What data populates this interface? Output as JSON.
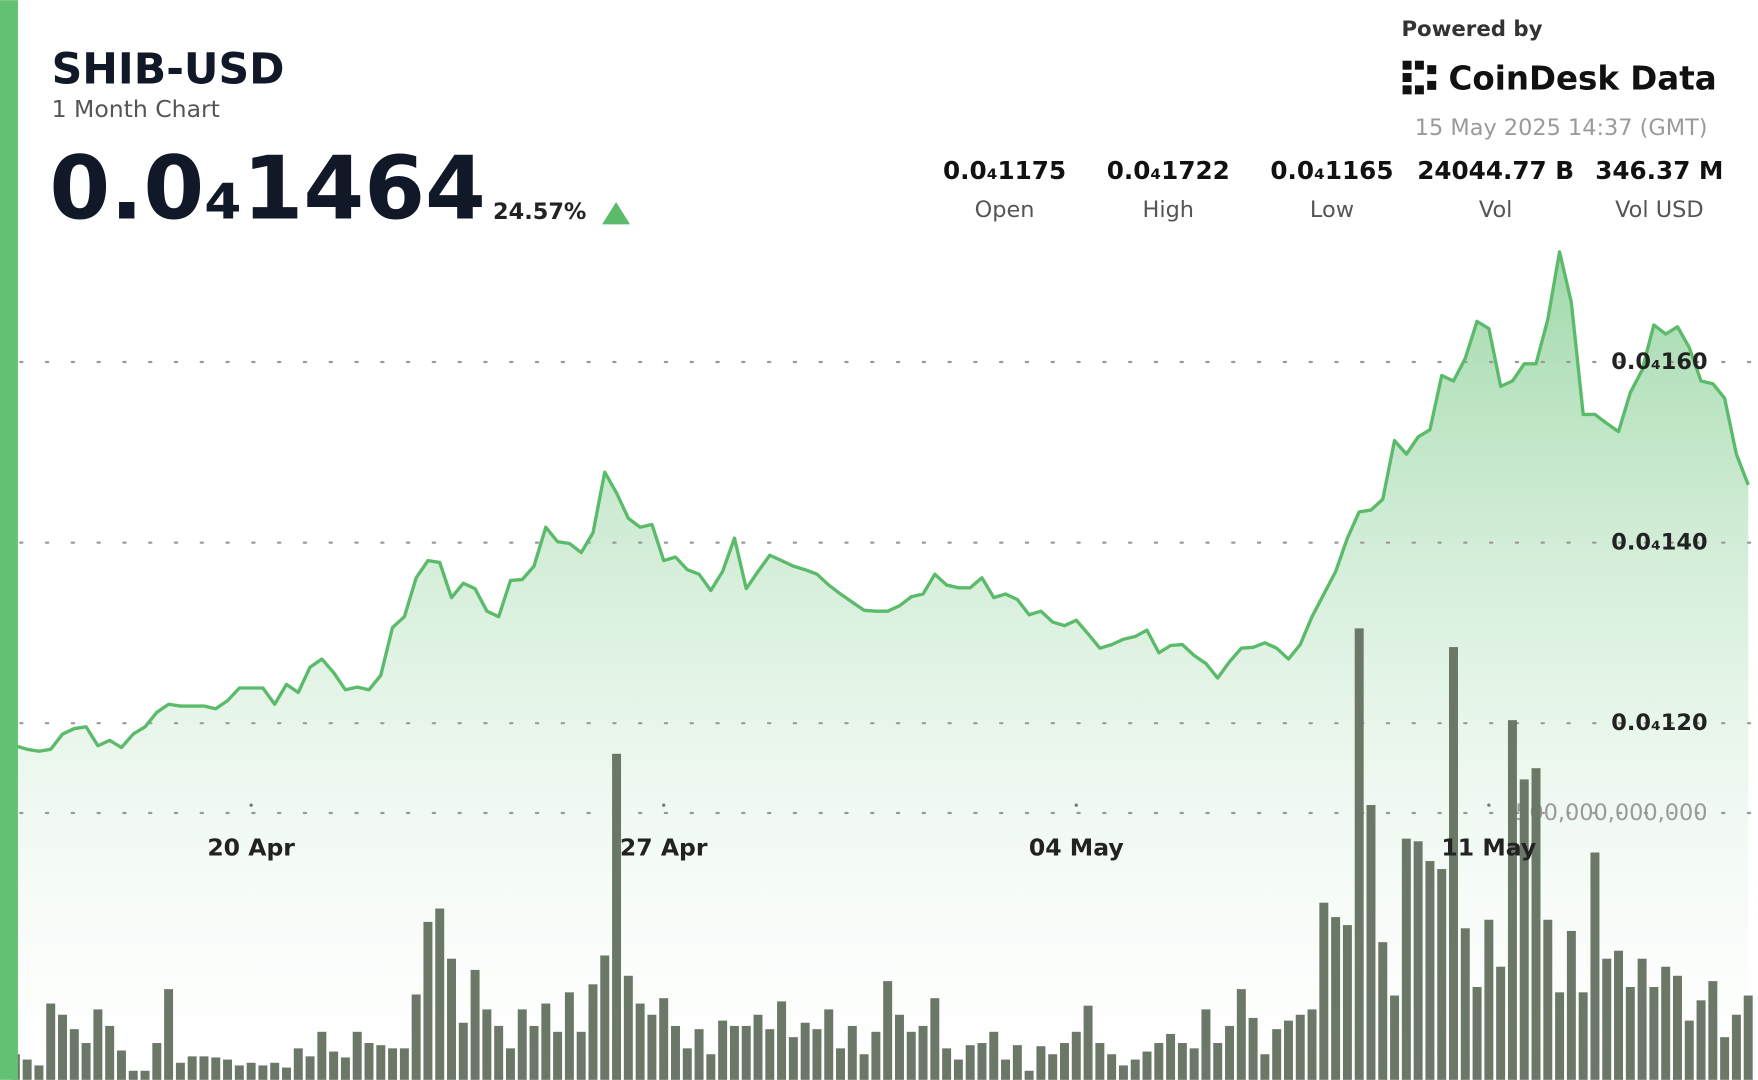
{
  "header": {
    "title": "SHIB-USD",
    "subtitle": "1 Month Chart",
    "price": "0.0₄1464",
    "change": "24.57%",
    "powered_by": "Powered by",
    "brand": "CoinDesk Data",
    "timestamp": "15 May 2025 14:37 (GMT)"
  },
  "stats": [
    {
      "value": "0.0₄1175",
      "label": "Open"
    },
    {
      "value": "0.0₄1722",
      "label": "High"
    },
    {
      "value": "0.0₄1165",
      "label": "Low"
    },
    {
      "value": "24044.77 B",
      "label": "Vol"
    },
    {
      "value": "346.37 M",
      "label": "Vol USD"
    }
  ],
  "chart_data": {
    "type": "line",
    "categories": [
      null,
      null,
      null,
      null,
      null,
      null,
      null,
      null,
      null,
      null,
      null,
      null,
      null,
      null,
      null,
      null,
      null,
      null,
      null,
      null,
      "20 Apr",
      null,
      null,
      null,
      null,
      null,
      null,
      null,
      null,
      null,
      null,
      null,
      null,
      null,
      null,
      null,
      null,
      null,
      null,
      null,
      null,
      null,
      null,
      null,
      null,
      null,
      null,
      null,
      null,
      null,
      null,
      null,
      null,
      null,
      null,
      "27 Apr",
      null,
      null,
      null,
      null,
      null,
      null,
      null,
      null,
      null,
      null,
      null,
      null,
      null,
      null,
      null,
      null,
      null,
      null,
      null,
      null,
      null,
      null,
      null,
      null,
      null,
      null,
      null,
      null,
      null,
      null,
      null,
      null,
      null,
      null,
      "04 May",
      null,
      null,
      null,
      null,
      null,
      null,
      null,
      null,
      null,
      null,
      null,
      null,
      null,
      null,
      null,
      null,
      null,
      null,
      null,
      null,
      null,
      null,
      null,
      null,
      null,
      null,
      null,
      null,
      null,
      null,
      null,
      null,
      null,
      null,
      "11 May",
      null,
      null,
      null,
      null,
      null,
      null,
      null,
      null,
      null,
      null,
      null,
      null,
      null,
      null,
      null,
      null,
      null,
      null,
      null,
      null,
      null,
      null
    ],
    "series": [
      {
        "color": "#5cbb6b",
        "values": [
          1.175e-05,
          1.171e-05,
          1.169e-05,
          1.171e-05,
          1.188e-05,
          1.194e-05,
          1.196e-05,
          1.175e-05,
          1.181e-05,
          1.173e-05,
          1.188e-05,
          1.196e-05,
          1.212e-05,
          1.221e-05,
          1.219e-05,
          1.219e-05,
          1.219e-05,
          1.216e-05,
          1.225e-05,
          1.239e-05,
          1.239e-05,
          1.239e-05,
          1.221e-05,
          1.243e-05,
          1.234e-05,
          1.262e-05,
          1.271e-05,
          1.256e-05,
          1.237e-05,
          1.24e-05,
          1.237e-05,
          1.253e-05,
          1.306e-05,
          1.318e-05,
          1.361e-05,
          1.38e-05,
          1.378e-05,
          1.339e-05,
          1.355e-05,
          1.349e-05,
          1.324e-05,
          1.318e-05,
          1.358e-05,
          1.359e-05,
          1.374e-05,
          1.417e-05,
          1.401e-05,
          1.399e-05,
          1.389e-05,
          1.411e-05,
          1.478e-05,
          1.455e-05,
          1.427e-05,
          1.417e-05,
          1.42e-05,
          1.38e-05,
          1.384e-05,
          1.37e-05,
          1.365e-05,
          1.347e-05,
          1.368e-05,
          1.405e-05,
          1.349e-05,
          1.368e-05,
          1.386e-05,
          1.38e-05,
          1.374e-05,
          1.37e-05,
          1.365e-05,
          1.353e-05,
          1.343e-05,
          1.334e-05,
          1.325e-05,
          1.324e-05,
          1.324e-05,
          1.33e-05,
          1.34e-05,
          1.343e-05,
          1.365e-05,
          1.353e-05,
          1.35e-05,
          1.35e-05,
          1.361e-05,
          1.339e-05,
          1.343e-05,
          1.337e-05,
          1.32e-05,
          1.324e-05,
          1.312e-05,
          1.308e-05,
          1.314e-05,
          1.299e-05,
          1.283e-05,
          1.287e-05,
          1.293e-05,
          1.296e-05,
          1.303e-05,
          1.278e-05,
          1.286e-05,
          1.287e-05,
          1.275e-05,
          1.266e-05,
          1.25e-05,
          1.268e-05,
          1.283e-05,
          1.284e-05,
          1.289e-05,
          1.283e-05,
          1.271e-05,
          1.287e-05,
          1.318e-05,
          1.343e-05,
          1.368e-05,
          1.405e-05,
          1.434e-05,
          1.436e-05,
          1.448e-05,
          1.513e-05,
          1.498e-05,
          1.517e-05,
          1.525e-05,
          1.585e-05,
          1.579e-05,
          1.604e-05,
          1.645e-05,
          1.637e-05,
          1.573e-05,
          1.579e-05,
          1.598e-05,
          1.598e-05,
          1.647e-05,
          1.722e-05,
          1.666e-05,
          1.542e-05,
          1.542e-05,
          1.532e-05,
          1.523e-05,
          1.566e-05,
          1.591e-05,
          1.641e-05,
          1.631e-05,
          1.639e-05,
          1.616e-05,
          1.579e-05,
          1.576e-05,
          1.56e-05,
          1.498e-05,
          1.464e-05
        ]
      },
      {
        "type": "bar",
        "axis": "y2",
        "color": "#6b7868",
        "values": [
          48000000000.0,
          38000000000.0,
          27000000000.0,
          143000000000.0,
          122000000000.0,
          95000000000.0,
          69000000000.0,
          132000000000.0,
          101000000000.0,
          55000000000.0,
          17000000000.0,
          17000000000.0,
          69000000000.0,
          170000000000.0,
          32000000000.0,
          44000000000.0,
          44000000000.0,
          42000000000.0,
          38000000000.0,
          27000000000.0,
          32000000000.0,
          27000000000.0,
          32000000000.0,
          23000000000.0,
          59000000000.0,
          44000000000.0,
          90000000000.0,
          53000000000.0,
          42000000000.0,
          90000000000.0,
          69000000000.0,
          65000000000.0,
          59000000000.0,
          59000000000.0,
          160000000000.0,
          296000000000.0,
          321000000000.0,
          227000000000.0,
          107000000000.0,
          206000000000.0,
          132000000000.0,
          101000000000.0,
          59000000000.0,
          132000000000.0,
          101000000000.0,
          143000000000.0,
          90000000000.0,
          164000000000.0,
          90000000000.0,
          179000000000.0,
          233000000000.0,
          611000000000.0,
          195000000000.0,
          143000000000.0,
          122000000000.0,
          153000000000.0,
          101000000000.0,
          59000000000.0,
          95000000000.0,
          48000000000.0,
          111000000000.0,
          101000000000.0,
          101000000000.0,
          122000000000.0,
          95000000000.0,
          147000000000.0,
          80000000000.0,
          107000000000.0,
          95000000000.0,
          132000000000.0,
          59000000000.0,
          101000000000.0,
          48000000000.0,
          90000000000.0,
          185000000000.0,
          122000000000.0,
          90000000000.0,
          101000000000.0,
          153000000000.0,
          59000000000.0,
          38000000000.0,
          65000000000.0,
          69000000000.0,
          90000000000.0,
          38000000000.0,
          65000000000.0,
          17000000000.0,
          63000000000.0,
          48000000000.0,
          69000000000.0,
          90000000000.0,
          139000000000.0,
          69000000000.0,
          48000000000.0,
          27000000000.0,
          38000000000.0,
          53000000000.0,
          69000000000.0,
          86000000000.0,
          69000000000.0,
          59000000000.0,
          132000000000.0,
          69000000000.0,
          101000000000.0,
          170000000000.0,
          116000000000.0,
          48000000000.0,
          95000000000.0,
          111000000000.0,
          122000000000.0,
          132000000000.0,
          332000000000.0,
          305000000000.0,
          290000000000.0,
          846000000000.0,
          515000000000.0,
          258000000000.0,
          158000000000.0,
          452000000000.0,
          447000000000.0,
          410000000000.0,
          395000000000.0,
          811000000000.0,
          284000000000.0,
          174000000000.0,
          300000000000.0,
          212000000000.0,
          674000000000.0,
          563000000000.0,
          584000000000.0,
          300000000000.0,
          164000000000.0,
          279000000000.0,
          164000000000.0,
          426000000000.0,
          227000000000.0,
          242000000000.0,
          174000000000.0,
          227000000000.0,
          174000000000.0,
          212000000000.0,
          195000000000.0,
          111000000000.0,
          149000000000.0,
          185000000000.0,
          80000000000.0,
          122000000000.0,
          158000000000.0
        ]
      }
    ],
    "ylim": [
      8.05e-06,
      1.74e-05
    ],
    "yticks": [
      {
        "value": 1.2e-05,
        "label": "0.0₄120"
      },
      {
        "value": 1.4e-05,
        "label": "0.0₄140"
      },
      {
        "value": 1.6e-05,
        "label": "0.0₄160"
      }
    ],
    "y2lim": [
      0,
      1582000000000
    ],
    "y2ticks": [
      {
        "value": 500000000000,
        "label": "500,000,000,000"
      }
    ],
    "grid": true
  }
}
